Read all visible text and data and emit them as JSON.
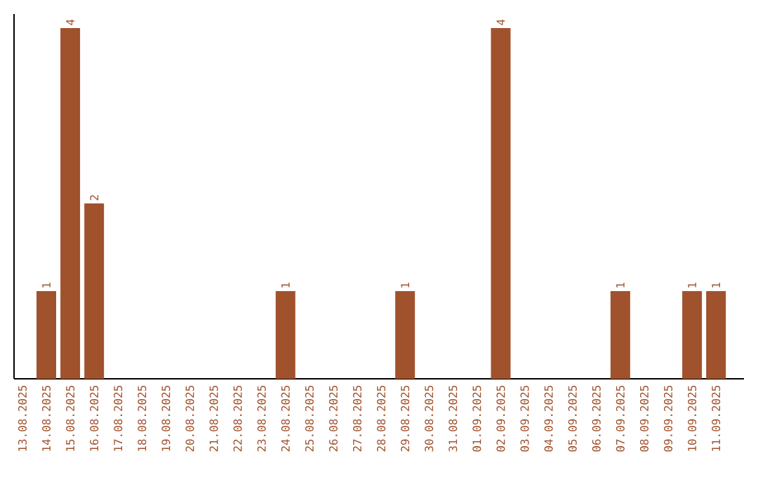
{
  "chart_data": {
    "type": "bar",
    "categories": [
      "13.08.2025",
      "14.08.2025",
      "15.08.2025",
      "16.08.2025",
      "17.08.2025",
      "18.08.2025",
      "19.08.2025",
      "20.08.2025",
      "21.08.2025",
      "22.08.2025",
      "23.08.2025",
      "24.08.2025",
      "25.08.2025",
      "26.08.2025",
      "27.08.2025",
      "28.08.2025",
      "29.08.2025",
      "30.08.2025",
      "31.08.2025",
      "01.09.2025",
      "02.09.2025",
      "03.09.2025",
      "04.09.2025",
      "05.09.2025",
      "06.09.2025",
      "07.09.2025",
      "08.09.2025",
      "09.09.2025",
      "10.09.2025",
      "11.09.2025"
    ],
    "values": [
      0,
      1,
      4,
      2,
      0,
      0,
      0,
      0,
      0,
      0,
      0,
      1,
      0,
      0,
      0,
      0,
      1,
      0,
      0,
      0,
      4,
      0,
      0,
      0,
      0,
      1,
      0,
      0,
      1,
      1
    ],
    "value_labels": [
      null,
      "1",
      "4",
      "2",
      null,
      null,
      null,
      null,
      null,
      null,
      null,
      "1",
      null,
      null,
      null,
      null,
      "1",
      null,
      null,
      null,
      "4",
      null,
      null,
      null,
      null,
      "1",
      null,
      null,
      "1",
      "1"
    ],
    "color": "#a0522d"
  }
}
